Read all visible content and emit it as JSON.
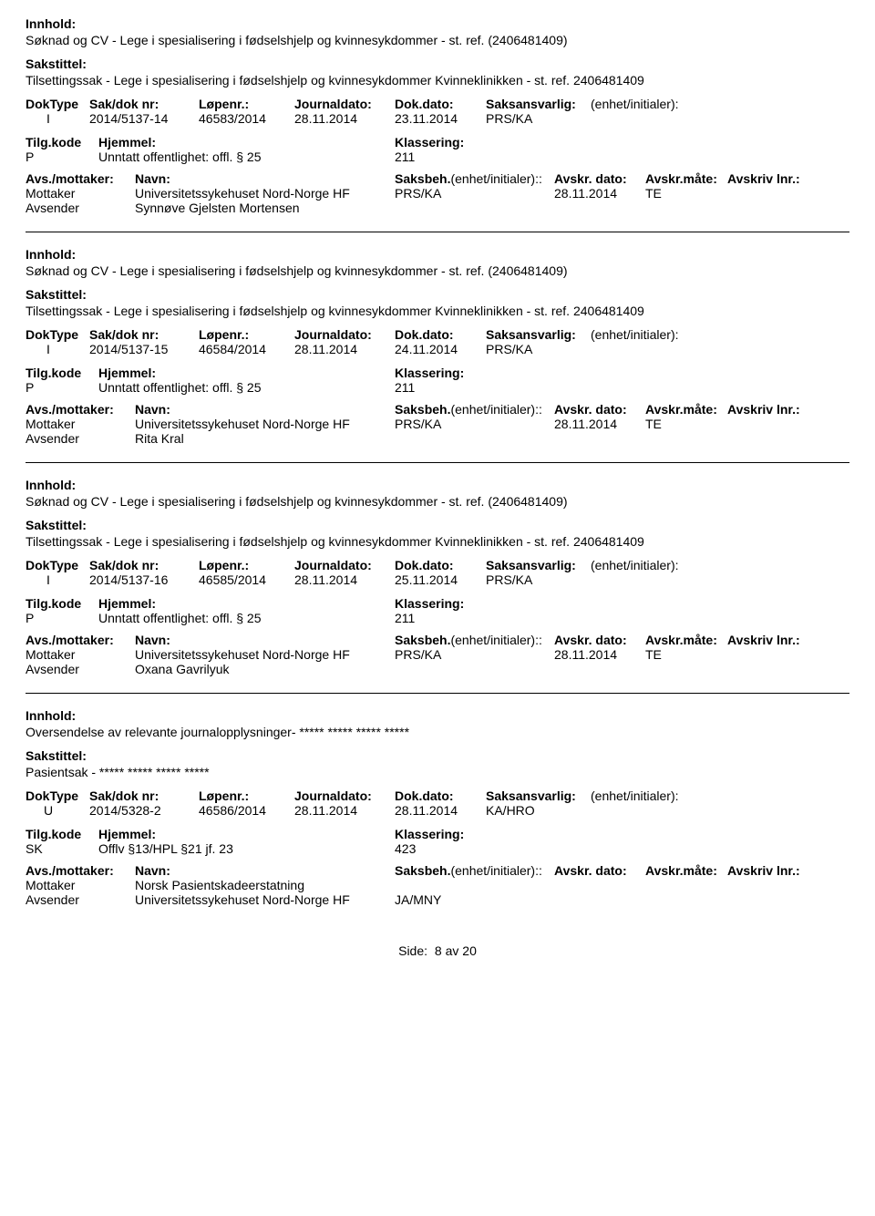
{
  "labels": {
    "innhold": "Innhold:",
    "sakstittel": "Sakstittel:",
    "doktype": "DokType",
    "sakdok": "Sak/dok nr:",
    "lopenr": "Løpenr.:",
    "journaldato": "Journaldato:",
    "dokdato": "Dok.dato:",
    "saksansvarlig": "Saksansvarlig:",
    "enhet_initialer": "(enhet/initialer):",
    "tilgkode": "Tilg.kode",
    "hjemmel": "Hjemmel:",
    "klassering": "Klassering:",
    "avs_mottaker": "Avs./mottaker:",
    "navn": "Navn:",
    "saksbeh": "Saksbeh.",
    "avskr_dato": "Avskr. dato:",
    "avskr_mate": "Avskr.måte:",
    "avskriv_lnr": "Avskriv lnr.:",
    "mottaker": "Mottaker",
    "avsender": "Avsender"
  },
  "records": [
    {
      "innhold": "Søknad og CV - Lege i spesialisering i fødselshjelp og kvinnesykdommer - st. ref. (2406481409)",
      "sakstittel": "Tilsettingssak - Lege i spesialisering i fødselshjelp og kvinnesykdommer Kvinneklinikken - st. ref. 2406481409",
      "doktype": "I",
      "sakdok": "2014/5137-14",
      "lopenr": "46583/2014",
      "journaldato": "28.11.2014",
      "dokdato": "23.11.2014",
      "saksansvarlig": "PRS/KA",
      "tilgkode": "P",
      "hjemmel": "Unntatt offentlighet: offl. § 25",
      "klassering": "211",
      "corr": [
        {
          "role": "Mottaker",
          "name": "Universitetssykehuset Nord-Norge HF",
          "saksbeh": "PRS/KA",
          "avskr_dato": "28.11.2014",
          "avskr_mate": "TE"
        },
        {
          "role": "Avsender",
          "name": "Synnøve Gjelsten Mortensen",
          "saksbeh": "",
          "avskr_dato": "",
          "avskr_mate": ""
        }
      ]
    },
    {
      "innhold": "Søknad og CV - Lege i spesialisering i fødselshjelp og kvinnesykdommer - st. ref. (2406481409)",
      "sakstittel": "Tilsettingssak - Lege i spesialisering i fødselshjelp og kvinnesykdommer Kvinneklinikken - st. ref. 2406481409",
      "doktype": "I",
      "sakdok": "2014/5137-15",
      "lopenr": "46584/2014",
      "journaldato": "28.11.2014",
      "dokdato": "24.11.2014",
      "saksansvarlig": "PRS/KA",
      "tilgkode": "P",
      "hjemmel": "Unntatt offentlighet: offl. § 25",
      "klassering": "211",
      "corr": [
        {
          "role": "Mottaker",
          "name": "Universitetssykehuset Nord-Norge HF",
          "saksbeh": "PRS/KA",
          "avskr_dato": "28.11.2014",
          "avskr_mate": "TE"
        },
        {
          "role": "Avsender",
          "name": "Rita Kral",
          "saksbeh": "",
          "avskr_dato": "",
          "avskr_mate": ""
        }
      ]
    },
    {
      "innhold": "Søknad og CV - Lege i spesialisering i fødselshjelp og kvinnesykdommer - st. ref. (2406481409)",
      "sakstittel": "Tilsettingssak - Lege i spesialisering i fødselshjelp og kvinnesykdommer Kvinneklinikken - st. ref. 2406481409",
      "doktype": "I",
      "sakdok": "2014/5137-16",
      "lopenr": "46585/2014",
      "journaldato": "28.11.2014",
      "dokdato": "25.11.2014",
      "saksansvarlig": "PRS/KA",
      "tilgkode": "P",
      "hjemmel": "Unntatt offentlighet: offl. § 25",
      "klassering": "211",
      "corr": [
        {
          "role": "Mottaker",
          "name": "Universitetssykehuset Nord-Norge HF",
          "saksbeh": "PRS/KA",
          "avskr_dato": "28.11.2014",
          "avskr_mate": "TE"
        },
        {
          "role": "Avsender",
          "name": "Oxana Gavrilyuk",
          "saksbeh": "",
          "avskr_dato": "",
          "avskr_mate": ""
        }
      ]
    },
    {
      "innhold": "Oversendelse av  relevante journalopplysninger- ***** ***** ***** *****",
      "sakstittel": "Pasientsak -  ***** ***** ***** *****",
      "doktype": "U",
      "sakdok": "2014/5328-2",
      "lopenr": "46586/2014",
      "journaldato": "28.11.2014",
      "dokdato": "28.11.2014",
      "saksansvarlig": "KA/HRO",
      "tilgkode": "SK",
      "hjemmel": "Offlv §13/HPL §21 jf. 23",
      "klassering": "423",
      "corr": [
        {
          "role": "Mottaker",
          "name": "Norsk Pasientskadeerstatning",
          "saksbeh": "",
          "avskr_dato": "",
          "avskr_mate": ""
        },
        {
          "role": "Avsender",
          "name": "Universitetssykehuset Nord-Norge HF",
          "saksbeh": "JA/MNY",
          "avskr_dato": "",
          "avskr_mate": ""
        }
      ]
    }
  ],
  "footer": {
    "side_label": "Side:",
    "page_current": "8",
    "page_sep": "av",
    "page_total": "20"
  }
}
